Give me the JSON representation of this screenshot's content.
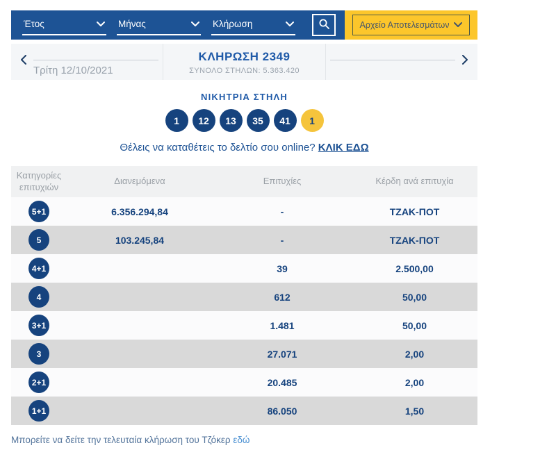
{
  "colors": {
    "bar_blue": "#1d5395",
    "bar_yellow": "#fcc62b",
    "navy": "#16437e",
    "title_blue": "#1f5aa8",
    "ball_yellow": "#f5c43c",
    "row_gray": "#d9d9d9",
    "header_gray_bg": "#f0f1f2",
    "link_light_blue": "#4a90d2"
  },
  "filters": {
    "year_label": "Έτος",
    "month_label": "Μήνας",
    "draw_label": "Κλήρωση",
    "archive_button": "Αρχείο Αποτελεσμάτων"
  },
  "draw_nav": {
    "date": "Τρίτη 12/10/2021",
    "title": "ΚΛΗΡΩΣΗ 2349",
    "subtitle": "ΣΥΝΟΛΟ ΣΤΗΛΩΝ: 5.363.420"
  },
  "winning_column": {
    "heading": "ΝΙΚΗΤΡΙΑ ΣΤΗΛΗ",
    "numbers": [
      "1",
      "12",
      "13",
      "35",
      "41"
    ],
    "joker": "1"
  },
  "online_cta": {
    "text": "Θέλεις να καταθέτεις το δελτίο σου online?",
    "link": "ΚΛΙΚ ΕΔΩ"
  },
  "table": {
    "headers": [
      "Κατηγορίες επιτυχιών",
      "Διανεμόμενα",
      "Επιτυχίες",
      "Κέρδη ανά επιτυχία"
    ],
    "rows": [
      {
        "category": "5+1",
        "distributed": "6.356.294,84",
        "winners": "-",
        "prize": "ΤΖΑΚ-ΠΟΤ"
      },
      {
        "category": "5",
        "distributed": "103.245,84",
        "winners": "-",
        "prize": "ΤΖΑΚ-ΠΟΤ"
      },
      {
        "category": "4+1",
        "distributed": "",
        "winners": "39",
        "prize": "2.500,00"
      },
      {
        "category": "4",
        "distributed": "",
        "winners": "612",
        "prize": "50,00"
      },
      {
        "category": "3+1",
        "distributed": "",
        "winners": "1.481",
        "prize": "50,00"
      },
      {
        "category": "3",
        "distributed": "",
        "winners": "27.071",
        "prize": "2,00"
      },
      {
        "category": "2+1",
        "distributed": "",
        "winners": "20.485",
        "prize": "2,00"
      },
      {
        "category": "1+1",
        "distributed": "",
        "winners": "86.050",
        "prize": "1,50"
      }
    ]
  },
  "footer": {
    "text": "Μπορείτε να δείτε την τελευταία κλήρωση του Τζόκερ",
    "link": "εδώ"
  }
}
